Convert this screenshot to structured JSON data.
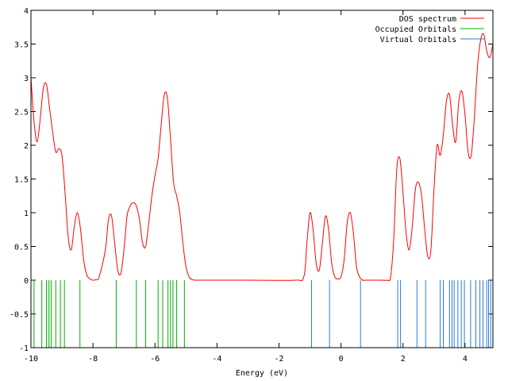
{
  "chart_data": {
    "type": "line",
    "title": "",
    "xlabel": "Energy (eV)",
    "ylabel": "",
    "xlim": [
      -10,
      4.9
    ],
    "ylim": [
      -1,
      4
    ],
    "grid": false,
    "legend_position": "top-right",
    "x_ticks": [
      -10,
      -8,
      -6,
      -4,
      -2,
      0,
      2,
      4
    ],
    "x_tick_labels": [
      "-10",
      "-8",
      "-6",
      "-4",
      "-2",
      "0",
      "2",
      "4"
    ],
    "y_ticks": [
      -1,
      -0.5,
      0,
      0.5,
      1,
      1.5,
      2,
      2.5,
      3,
      3.5,
      4
    ],
    "y_tick_labels": [
      "-1",
      "-0.5",
      "0",
      "0.5",
      "1",
      "1.5",
      "2",
      "2.5",
      "3",
      "3.5",
      "4"
    ],
    "series": [
      {
        "name": "DOS spectrum",
        "color": "#ff0000",
        "kind": "line",
        "x": [
          -10.0,
          -9.9,
          -9.8,
          -9.7,
          -9.6,
          -9.5,
          -9.4,
          -9.3,
          -9.2,
          -9.1,
          -9.0,
          -8.9,
          -8.8,
          -8.7,
          -8.6,
          -8.5,
          -8.4,
          -8.3,
          -8.2,
          -8.1,
          -8.0,
          -7.9,
          -7.8,
          -7.6,
          -7.5,
          -7.4,
          -7.3,
          -7.2,
          -7.1,
          -7.0,
          -6.9,
          -6.8,
          -6.7,
          -6.6,
          -6.5,
          -6.4,
          -6.3,
          -6.2,
          -6.1,
          -6.0,
          -5.9,
          -5.8,
          -5.7,
          -5.6,
          -5.5,
          -5.4,
          -5.3,
          -5.2,
          -5.1,
          -5.0,
          -4.9,
          -4.8,
          -4.7,
          -4.5,
          -3.0,
          -1.5,
          -1.2,
          -1.1,
          -1.0,
          -0.9,
          -0.8,
          -0.7,
          -0.6,
          -0.5,
          -0.4,
          -0.3,
          -0.2,
          -0.1,
          0.0,
          0.1,
          0.2,
          0.3,
          0.4,
          0.5,
          0.6,
          0.7,
          0.8,
          0.9,
          1.0,
          1.3,
          1.5,
          1.6,
          1.7,
          1.8,
          1.9,
          2.0,
          2.1,
          2.2,
          2.3,
          2.4,
          2.5,
          2.6,
          2.7,
          2.8,
          2.9,
          3.0,
          3.1,
          3.2,
          3.3,
          3.4,
          3.5,
          3.6,
          3.7,
          3.8,
          3.9,
          4.0,
          4.1,
          4.2,
          4.3,
          4.4,
          4.5,
          4.6,
          4.7,
          4.8,
          4.9
        ],
        "y": [
          3.0,
          2.35,
          2.05,
          2.4,
          2.85,
          2.9,
          2.55,
          2.2,
          1.9,
          1.95,
          1.85,
          1.3,
          0.65,
          0.45,
          0.8,
          1.0,
          0.75,
          0.3,
          0.08,
          0.02,
          0.0,
          0.01,
          0.05,
          0.45,
          0.9,
          0.95,
          0.55,
          0.15,
          0.1,
          0.45,
          0.95,
          1.1,
          1.15,
          1.1,
          0.9,
          0.55,
          0.5,
          0.85,
          1.25,
          1.55,
          1.8,
          2.3,
          2.75,
          2.7,
          2.1,
          1.45,
          1.25,
          1.0,
          0.55,
          0.2,
          0.05,
          0.01,
          0.0,
          0.0,
          0.0,
          0.0,
          0.05,
          0.55,
          1.0,
          0.75,
          0.25,
          0.15,
          0.55,
          0.95,
          0.75,
          0.25,
          0.05,
          0.02,
          0.05,
          0.3,
          0.85,
          1.0,
          0.7,
          0.2,
          0.05,
          0.0,
          0.0,
          0.0,
          0.0,
          0.0,
          0.0,
          0.05,
          0.6,
          1.65,
          1.8,
          1.3,
          0.7,
          0.45,
          0.8,
          1.35,
          1.45,
          1.25,
          0.75,
          0.35,
          0.45,
          1.35,
          2.0,
          1.85,
          2.15,
          2.65,
          2.75,
          2.3,
          2.05,
          2.65,
          2.8,
          2.45,
          1.9,
          1.85,
          2.4,
          3.15,
          3.55,
          3.65,
          3.4,
          3.3,
          3.5
        ]
      },
      {
        "name": "Occupied Orbitals",
        "color": "#00b000",
        "kind": "stick",
        "x": [
          -9.9,
          -9.65,
          -9.5,
          -9.42,
          -9.35,
          -9.2,
          -9.05,
          -8.92,
          -8.42,
          -7.25,
          -6.6,
          -6.3,
          -5.9,
          -5.75,
          -5.58,
          -5.5,
          -5.42,
          -5.3,
          -5.05
        ],
        "y_range": [
          -1,
          0
        ]
      },
      {
        "name": "Virtual Orbitals",
        "color": "#2b7bd6",
        "kind": "stick",
        "x": [
          -0.95,
          -0.37,
          0.63,
          1.83,
          1.92,
          2.45,
          2.73,
          3.2,
          3.3,
          3.5,
          3.58,
          3.65,
          3.77,
          3.88,
          3.98,
          4.18,
          4.35,
          4.48,
          4.58,
          4.7,
          4.76,
          4.83
        ],
        "y_range": [
          -1,
          0
        ]
      }
    ]
  }
}
